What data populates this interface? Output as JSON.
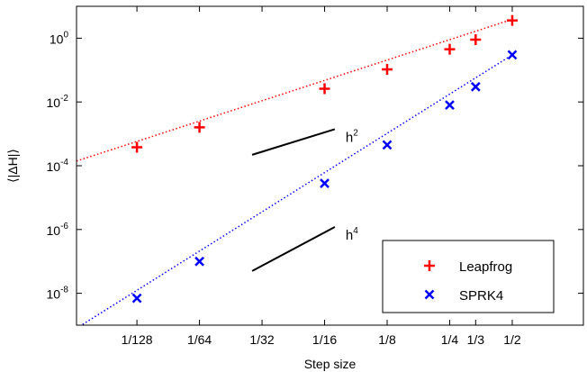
{
  "chart_data": {
    "type": "line",
    "xlabel": "Step size",
    "ylabel": "⟨|ΔH|⟩",
    "x_scale": "log",
    "y_scale": "log",
    "xlim": [
      0.004,
      1.1
    ],
    "ylim": [
      1e-09,
      10
    ],
    "x_ticks": [
      {
        "value": 0.0078125,
        "label": "1/128"
      },
      {
        "value": 0.015625,
        "label": "1/64"
      },
      {
        "value": 0.03125,
        "label": "1/32"
      },
      {
        "value": 0.0625,
        "label": "1/16"
      },
      {
        "value": 0.125,
        "label": "1/8"
      },
      {
        "value": 0.25,
        "label": "1/4"
      },
      {
        "value": 0.3333,
        "label": "1/3"
      },
      {
        "value": 0.5,
        "label": "1/2"
      }
    ],
    "y_ticks": [
      {
        "value": 1e-08,
        "base": "10",
        "exp": "-8"
      },
      {
        "value": 1e-06,
        "base": "10",
        "exp": "-6"
      },
      {
        "value": 0.0001,
        "base": "10",
        "exp": "-4"
      },
      {
        "value": 0.01,
        "base": "10",
        "exp": "-2"
      },
      {
        "value": 1,
        "base": "10",
        "exp": "0"
      }
    ],
    "series": [
      {
        "name": "Leapfrog",
        "color": "#ff0000",
        "marker": "plus",
        "x": [
          0.0078125,
          0.015625,
          0.0625,
          0.125,
          0.25,
          0.3333,
          0.5
        ],
        "y": [
          0.00038,
          0.0016,
          0.026,
          0.105,
          0.45,
          0.9,
          3.6
        ],
        "fit_x": [
          0.004,
          0.5
        ],
        "fit_y": [
          0.00014,
          3.9
        ]
      },
      {
        "name": "SPRK4",
        "color": "#0000ff",
        "marker": "x",
        "x": [
          0.0078125,
          0.015625,
          0.0625,
          0.125,
          0.25,
          0.3333,
          0.5
        ],
        "y": [
          7e-09,
          1e-07,
          2.8e-05,
          0.00045,
          0.008,
          0.03,
          0.3
        ],
        "fit_x": [
          0.004,
          0.5
        ],
        "fit_y": [
          8e-10,
          0.3
        ]
      }
    ],
    "slope_guides": [
      {
        "label_base": "h",
        "label_exp": "2",
        "x": [
          0.028,
          0.07
        ],
        "y": [
          0.00022,
          0.0014
        ]
      },
      {
        "label_base": "h",
        "label_exp": "4",
        "x": [
          0.028,
          0.07
        ],
        "y": [
          5e-08,
          1.2e-06
        ]
      }
    ],
    "legend_position": "bottom-right",
    "grid": false
  }
}
